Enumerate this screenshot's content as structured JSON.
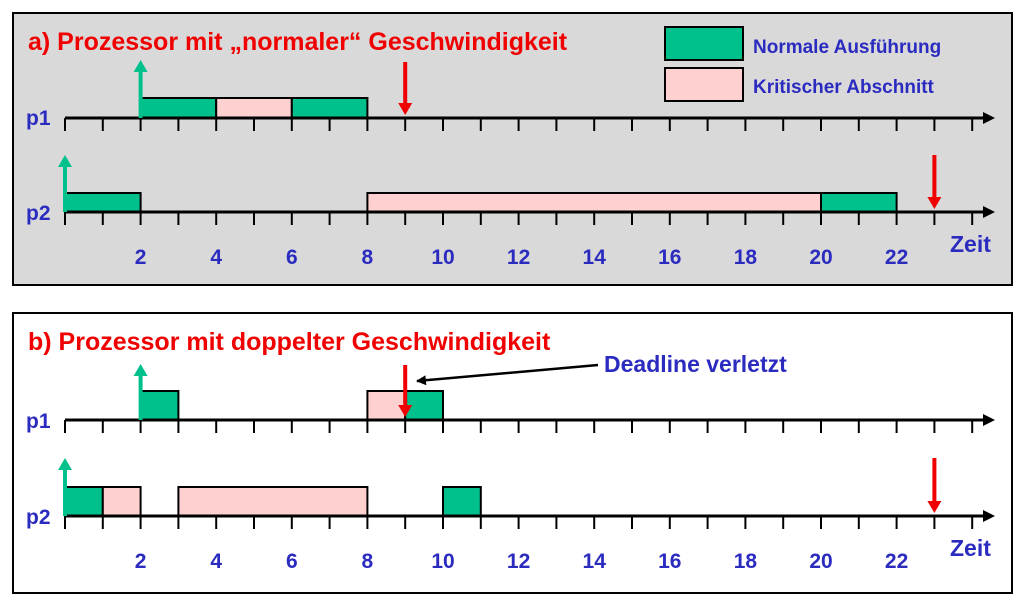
{
  "colors": {
    "panel_bg": "#d9d9d9",
    "normal": "#00c08b",
    "critical": "#ffd0d0",
    "release_arrow": "#00c08b",
    "deadline_arrow": "#f00000",
    "text_blue": "#2b2bc0",
    "text_red": "#f00000"
  },
  "legend": {
    "normal_label": "Normale Ausführung",
    "critical_label": "Kritischer Abschnitt"
  },
  "time_axis_label": "Zeit",
  "tick_labels": [
    "2",
    "4",
    "6",
    "8",
    "10",
    "12",
    "14",
    "16",
    "18",
    "20",
    "22"
  ],
  "panels": [
    {
      "id": "a",
      "title": "a) Prozessor mit „normaler“ Geschwindigkeit",
      "processes": [
        {
          "name": "p1",
          "release": 2,
          "deadline": 9,
          "segments": [
            {
              "start": 2,
              "end": 4,
              "kind": "normal"
            },
            {
              "start": 4,
              "end": 6,
              "kind": "critical"
            },
            {
              "start": 6,
              "end": 8,
              "kind": "normal"
            }
          ]
        },
        {
          "name": "p2",
          "release": 0,
          "deadline": 23,
          "segments": [
            {
              "start": 0,
              "end": 2,
              "kind": "normal"
            },
            {
              "start": 8,
              "end": 20,
              "kind": "critical"
            },
            {
              "start": 20,
              "end": 22,
              "kind": "normal"
            }
          ]
        }
      ]
    },
    {
      "id": "b",
      "title": "b) Prozessor mit doppelter Geschwindigkeit",
      "annotation": "Deadline verletzt",
      "processes": [
        {
          "name": "p1",
          "release": 2,
          "deadline": 9,
          "segments": [
            {
              "start": 2,
              "end": 3,
              "kind": "normal"
            },
            {
              "start": 8,
              "end": 9,
              "kind": "critical"
            },
            {
              "start": 9,
              "end": 10,
              "kind": "normal"
            }
          ]
        },
        {
          "name": "p2",
          "release": 0,
          "deadline": 23,
          "segments": [
            {
              "start": 0,
              "end": 1,
              "kind": "normal"
            },
            {
              "start": 1,
              "end": 2,
              "kind": "critical"
            },
            {
              "start": 3,
              "end": 8,
              "kind": "critical"
            },
            {
              "start": 10,
              "end": 11,
              "kind": "normal"
            }
          ]
        }
      ]
    }
  ]
}
